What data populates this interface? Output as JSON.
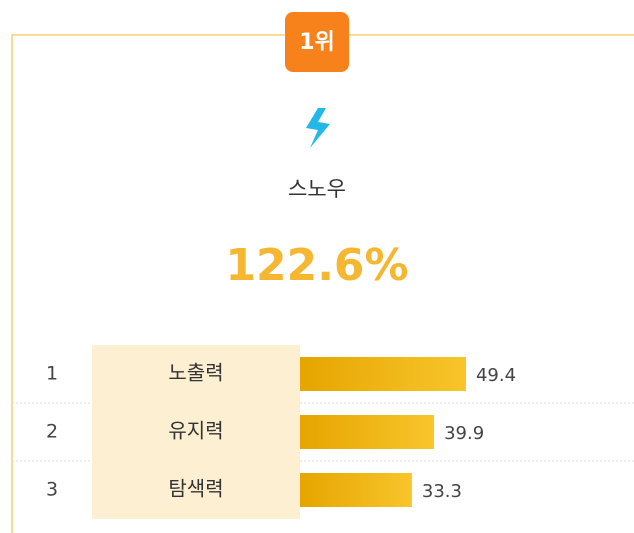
{
  "badge": "1위",
  "app": {
    "name": "스노우",
    "score": "122.6%"
  },
  "rows": [
    {
      "rank": 1,
      "label": "노출력",
      "value": 49.4
    },
    {
      "rank": 2,
      "label": "유지력",
      "value": 39.9
    },
    {
      "rank": 3,
      "label": "탐색력",
      "value": 33.3
    }
  ]
}
